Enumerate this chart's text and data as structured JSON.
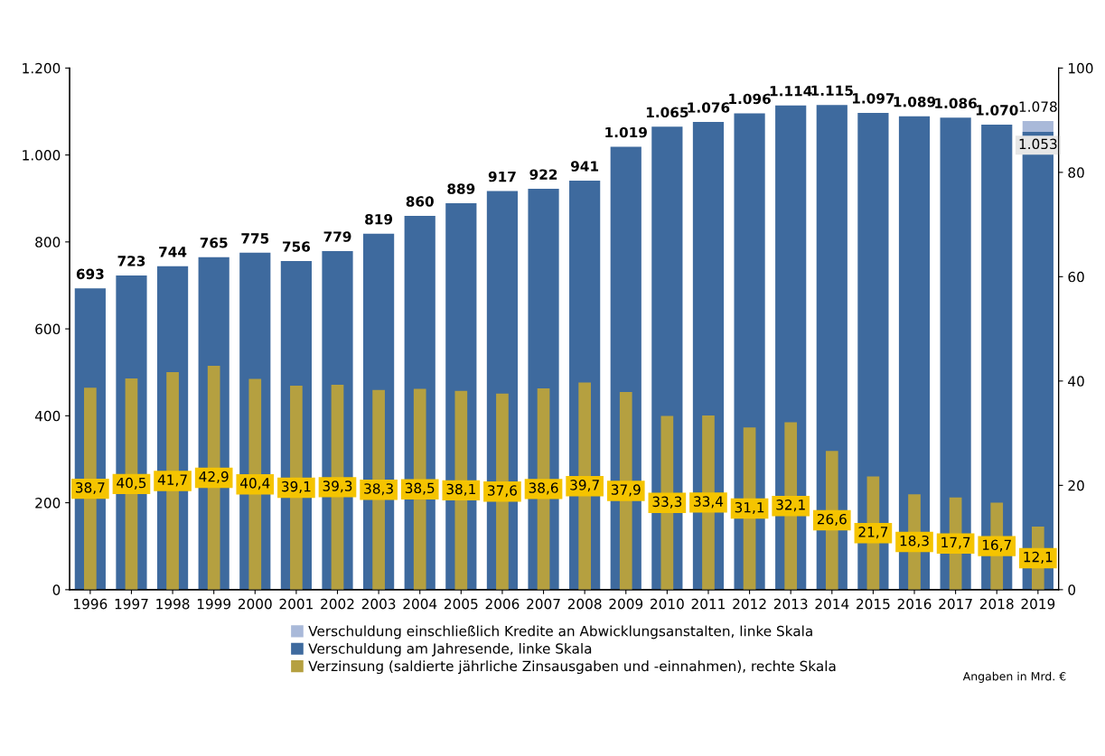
{
  "chart_data": {
    "type": "bar",
    "categories": [
      "1996",
      "1997",
      "1998",
      "1999",
      "2000",
      "2001",
      "2002",
      "2003",
      "2004",
      "2005",
      "2006",
      "2007",
      "2008",
      "2009",
      "2010",
      "2011",
      "2012",
      "2013",
      "2014",
      "2015",
      "2016",
      "2017",
      "2018",
      "2019"
    ],
    "series": [
      {
        "name": "Verschuldung einschließlich Kredite an Abwicklungsanstalten, linke Skala",
        "color": "#a9b9d9",
        "values": [
          null,
          null,
          null,
          null,
          null,
          null,
          null,
          null,
          null,
          null,
          null,
          null,
          null,
          null,
          null,
          null,
          null,
          null,
          null,
          null,
          null,
          null,
          null,
          1078
        ],
        "value_labels": [
          null,
          null,
          null,
          null,
          null,
          null,
          null,
          null,
          null,
          null,
          null,
          null,
          null,
          null,
          null,
          null,
          null,
          null,
          null,
          null,
          null,
          null,
          null,
          "1.078"
        ]
      },
      {
        "name": "Verschuldung am Jahresende, linke Skala",
        "color": "#3e6a9e",
        "values": [
          693,
          723,
          744,
          765,
          775,
          756,
          779,
          819,
          860,
          889,
          917,
          922,
          941,
          1019,
          1065,
          1076,
          1096,
          1114,
          1115,
          1097,
          1089,
          1086,
          1070,
          1053
        ],
        "value_labels": [
          "693",
          "723",
          "744",
          "765",
          "775",
          "756",
          "779",
          "819",
          "860",
          "889",
          "917",
          "922",
          "941",
          "1.019",
          "1.065",
          "1.076",
          "1.096",
          "1.114",
          "1.115",
          "1.097",
          "1.089",
          "1.086",
          "1.070",
          "1.053"
        ]
      },
      {
        "name": "Verzinsung (saldierte jährliche Zinsausgaben und -einnahmen), rechte Skala",
        "color": "#b5a040",
        "axis": "y2",
        "values": [
          38.7,
          40.5,
          41.7,
          42.9,
          40.4,
          39.1,
          39.3,
          38.3,
          38.5,
          38.1,
          37.6,
          38.6,
          39.7,
          37.9,
          33.3,
          33.4,
          31.1,
          32.1,
          26.6,
          21.7,
          18.3,
          17.7,
          16.7,
          12.1
        ],
        "value_labels": [
          "38,7",
          "40,5",
          "41,7",
          "42,9",
          "40,4",
          "39,1",
          "39,3",
          "38,3",
          "38,5",
          "38,1",
          "37,6",
          "38,6",
          "39,7",
          "37,9",
          "33,3",
          "33,4",
          "31,1",
          "32,1",
          "26,6",
          "21,7",
          "18,3",
          "17,7",
          "16,7",
          "12,1"
        ]
      }
    ],
    "ylim": [
      0,
      1200
    ],
    "yticks": [
      0,
      {
        "value": 200,
        "label": "200"
      },
      {
        "value": 400,
        "label": "400"
      },
      {
        "value": 600,
        "label": "600"
      },
      {
        "value": 800,
        "label": "800"
      },
      {
        "value": 1000,
        "label": "1.000"
      },
      {
        "value": 1200,
        "label": "1.200"
      }
    ],
    "y2lim": [
      0,
      100
    ],
    "y2ticks": [
      0,
      20,
      40,
      60,
      80,
      100
    ],
    "legend": "bottom",
    "grid": false,
    "annotations": [
      "Angaben in Mrd. €"
    ]
  }
}
